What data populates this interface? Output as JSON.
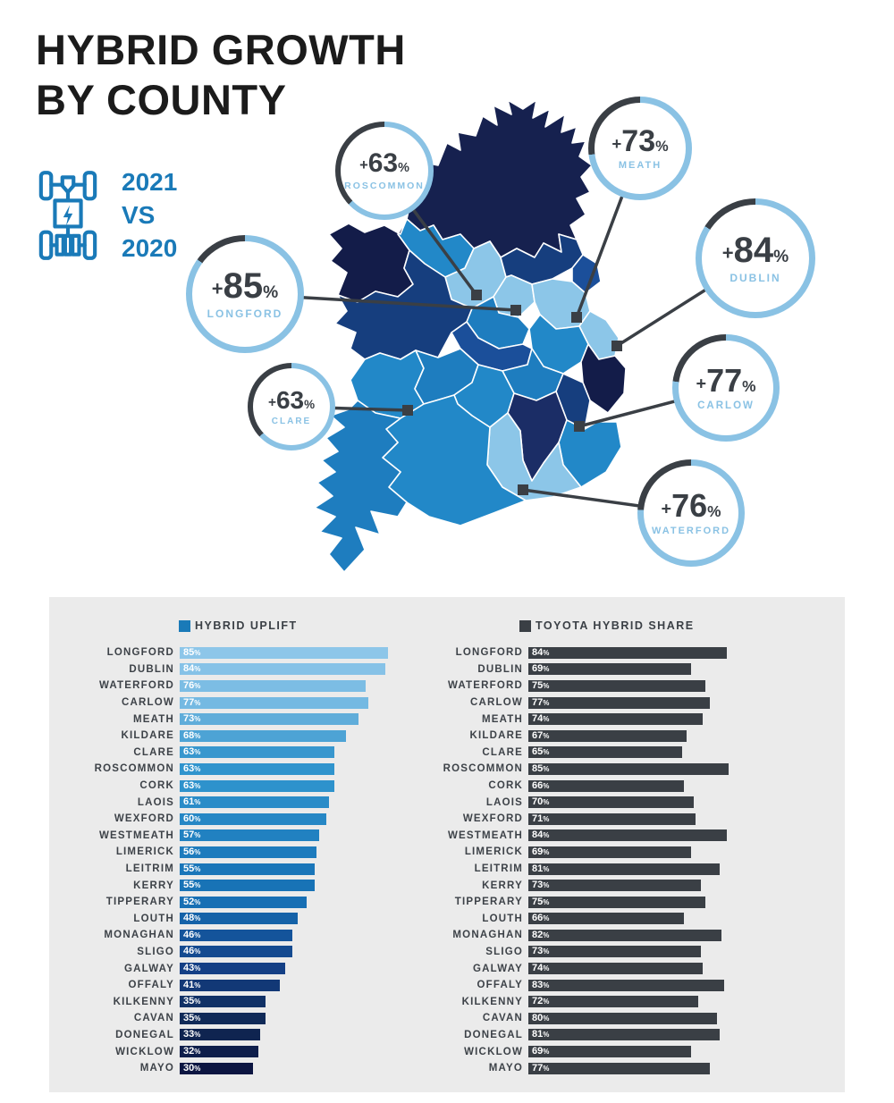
{
  "header": {
    "title_line1": "HYBRID GROWTH",
    "title_line2": "BY COUNTY",
    "comparison": {
      "year_top": "2021",
      "vs": "VS",
      "year_bottom": "2020"
    },
    "icon": "hybrid-car-chassis-icon"
  },
  "colors": {
    "accent_blue": "#1a7ab8",
    "callout_blue": "#8ac2e4",
    "charcoal": "#3a3f45",
    "panel_bg": "#ebebeb",
    "map_palette": [
      "#131c49",
      "#163e7e",
      "#1b4f9a",
      "#1e7dbf",
      "#2288c8",
      "#8cc6e8"
    ]
  },
  "map": {
    "callouts": [
      {
        "county": "ROSCOMMON",
        "value": 63,
        "display": "+63%"
      },
      {
        "county": "MEATH",
        "value": 73,
        "display": "+73%"
      },
      {
        "county": "DUBLIN",
        "value": 84,
        "display": "+84%"
      },
      {
        "county": "LONGFORD",
        "value": 85,
        "display": "+85%"
      },
      {
        "county": "CLARE",
        "value": 63,
        "display": "+63%"
      },
      {
        "county": "CARLOW",
        "value": 77,
        "display": "+77%"
      },
      {
        "county": "WATERFORD",
        "value": 76,
        "display": "+76%"
      }
    ]
  },
  "charts": {
    "left": {
      "legend": "HYBRID UPLIFT",
      "legend_color": "#1a7ab8",
      "rows": [
        {
          "county": "LONGFORD",
          "value": 85,
          "color": "#8dc6e9"
        },
        {
          "county": "DUBLIN",
          "value": 84,
          "color": "#86c2e7"
        },
        {
          "county": "WATERFORD",
          "value": 76,
          "color": "#7cbde4"
        },
        {
          "county": "CARLOW",
          "value": 77,
          "color": "#74b9e2"
        },
        {
          "county": "MEATH",
          "value": 73,
          "color": "#60adda"
        },
        {
          "county": "KILDARE",
          "value": 68,
          "color": "#4da3d5"
        },
        {
          "county": "CLARE",
          "value": 63,
          "color": "#3897ce"
        },
        {
          "county": "ROSCOMMON",
          "value": 63,
          "color": "#3094cd"
        },
        {
          "county": "CORK",
          "value": 63,
          "color": "#2e92cc"
        },
        {
          "county": "LAOIS",
          "value": 61,
          "color": "#2a8cc8"
        },
        {
          "county": "WEXFORD",
          "value": 60,
          "color": "#2687c5"
        },
        {
          "county": "WESTMEATH",
          "value": 57,
          "color": "#2181c1"
        },
        {
          "county": "LIMERICK",
          "value": 56,
          "color": "#1d7bbd"
        },
        {
          "county": "LEITRIM",
          "value": 55,
          "color": "#1a76b9"
        },
        {
          "county": "KERRY",
          "value": 55,
          "color": "#1873b6"
        },
        {
          "county": "TIPPERARY",
          "value": 52,
          "color": "#176fb4"
        },
        {
          "county": "LOUTH",
          "value": 48,
          "color": "#1562a8"
        },
        {
          "county": "MONAGHAN",
          "value": 46,
          "color": "#14549b"
        },
        {
          "county": "SLIGO",
          "value": 46,
          "color": "#144a90"
        },
        {
          "county": "GALWAY",
          "value": 43,
          "color": "#143f85"
        },
        {
          "county": "OFFALY",
          "value": 41,
          "color": "#123876"
        },
        {
          "county": "KILKENNY",
          "value": 35,
          "color": "#113166"
        },
        {
          "county": "CAVAN",
          "value": 35,
          "color": "#102a58"
        },
        {
          "county": "DONEGAL",
          "value": 33,
          "color": "#0f2450"
        },
        {
          "county": "WICKLOW",
          "value": 32,
          "color": "#0e1e4b"
        },
        {
          "county": "MAYO",
          "value": 30,
          "color": "#0c1541"
        }
      ]
    },
    "right": {
      "legend": "TOYOTA HYBRID SHARE",
      "legend_color": "#3a3f45",
      "bar_color": "#3a3f45",
      "rows": [
        {
          "county": "LONGFORD",
          "value": 84
        },
        {
          "county": "DUBLIN",
          "value": 69
        },
        {
          "county": "WATERFORD",
          "value": 75
        },
        {
          "county": "CARLOW",
          "value": 77
        },
        {
          "county": "MEATH",
          "value": 74
        },
        {
          "county": "KILDARE",
          "value": 67
        },
        {
          "county": "CLARE",
          "value": 65
        },
        {
          "county": "ROSCOMMON",
          "value": 85
        },
        {
          "county": "CORK",
          "value": 66
        },
        {
          "county": "LAOIS",
          "value": 70
        },
        {
          "county": "WEXFORD",
          "value": 71
        },
        {
          "county": "WESTMEATH",
          "value": 84
        },
        {
          "county": "LIMERICK",
          "value": 69
        },
        {
          "county": "LEITRIM",
          "value": 81
        },
        {
          "county": "KERRY",
          "value": 73
        },
        {
          "county": "TIPPERARY",
          "value": 75
        },
        {
          "county": "LOUTH",
          "value": 66
        },
        {
          "county": "MONAGHAN",
          "value": 82
        },
        {
          "county": "SLIGO",
          "value": 73
        },
        {
          "county": "GALWAY",
          "value": 74
        },
        {
          "county": "OFFALY",
          "value": 83
        },
        {
          "county": "KILKENNY",
          "value": 72
        },
        {
          "county": "CAVAN",
          "value": 80
        },
        {
          "county": "DONEGAL",
          "value": 81
        },
        {
          "county": "WICKLOW",
          "value": 69
        },
        {
          "county": "MAYO",
          "value": 77
        }
      ]
    }
  },
  "chart_data": [
    {
      "type": "bar",
      "title": "HYBRID UPLIFT",
      "orientation": "horizontal",
      "unit": "%",
      "categories": [
        "LONGFORD",
        "DUBLIN",
        "WATERFORD",
        "CARLOW",
        "MEATH",
        "KILDARE",
        "CLARE",
        "ROSCOMMON",
        "CORK",
        "LAOIS",
        "WEXFORD",
        "WESTMEATH",
        "LIMERICK",
        "LEITRIM",
        "KERRY",
        "TIPPERARY",
        "LOUTH",
        "MONAGHAN",
        "SLIGO",
        "GALWAY",
        "OFFALY",
        "KILKENNY",
        "CAVAN",
        "DONEGAL",
        "WICKLOW",
        "MAYO"
      ],
      "values": [
        85,
        84,
        76,
        77,
        73,
        68,
        63,
        63,
        63,
        61,
        60,
        57,
        56,
        55,
        55,
        52,
        48,
        46,
        46,
        43,
        41,
        35,
        35,
        33,
        32,
        30
      ],
      "xlim": [
        0,
        100
      ],
      "legend_position": "top"
    },
    {
      "type": "bar",
      "title": "TOYOTA HYBRID SHARE",
      "orientation": "horizontal",
      "unit": "%",
      "categories": [
        "LONGFORD",
        "DUBLIN",
        "WATERFORD",
        "CARLOW",
        "MEATH",
        "KILDARE",
        "CLARE",
        "ROSCOMMON",
        "CORK",
        "LAOIS",
        "WEXFORD",
        "WESTMEATH",
        "LIMERICK",
        "LEITRIM",
        "KERRY",
        "TIPPERARY",
        "LOUTH",
        "MONAGHAN",
        "SLIGO",
        "GALWAY",
        "OFFALY",
        "KILKENNY",
        "CAVAN",
        "DONEGAL",
        "WICKLOW",
        "MAYO"
      ],
      "values": [
        84,
        69,
        75,
        77,
        74,
        67,
        65,
        85,
        66,
        70,
        71,
        84,
        69,
        81,
        73,
        75,
        66,
        82,
        73,
        74,
        83,
        72,
        80,
        81,
        69,
        77
      ],
      "xlim": [
        0,
        100
      ],
      "legend_position": "top"
    }
  ]
}
